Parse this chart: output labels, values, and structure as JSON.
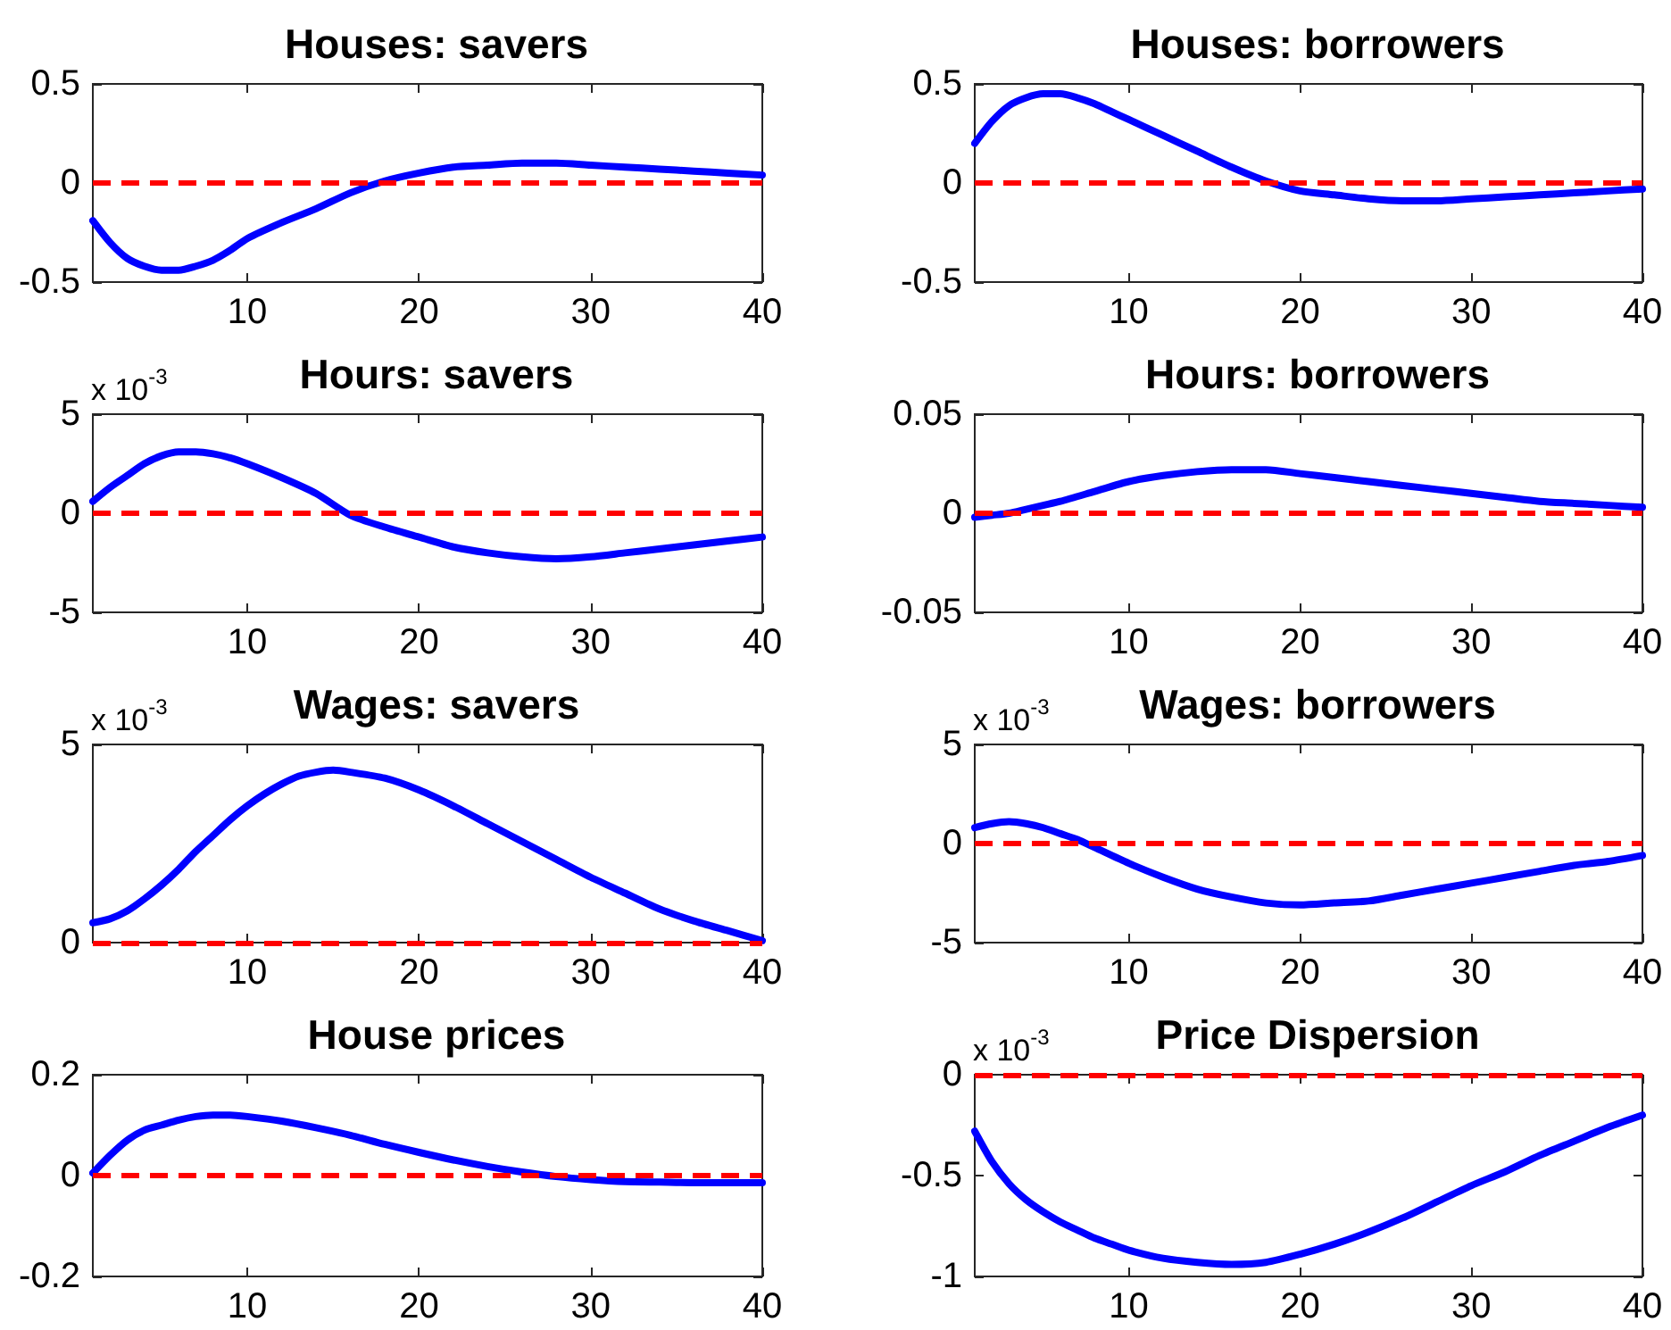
{
  "chart_data": [
    {
      "type": "line",
      "title": "Houses: savers",
      "x": [
        1,
        2,
        3,
        4,
        5,
        6,
        7,
        8,
        9,
        10,
        12,
        14,
        16,
        18,
        20,
        22,
        24,
        26,
        28,
        30,
        32,
        34,
        36,
        38,
        40
      ],
      "series": [
        {
          "color": "#0000ff",
          "values": [
            -0.19,
            -0.3,
            -0.38,
            -0.42,
            -0.44,
            -0.44,
            -0.42,
            -0.39,
            -0.34,
            -0.28,
            -0.2,
            -0.13,
            -0.05,
            0.01,
            0.05,
            0.08,
            0.09,
            0.1,
            0.1,
            0.09,
            0.08,
            0.07,
            0.06,
            0.05,
            0.04
          ]
        }
      ],
      "xlim": [
        1,
        40
      ],
      "xticks": [
        10,
        20,
        30,
        40
      ],
      "ylim": [
        -0.5,
        0.5
      ],
      "yticks": [
        -0.5,
        0,
        0.5
      ],
      "ref_lines": [
        {
          "axis": "y",
          "value": 0,
          "color": "#ff0000",
          "line_style": "dashed"
        }
      ],
      "marker": "none"
    },
    {
      "type": "line",
      "title": "Houses: borrowers",
      "x": [
        1,
        2,
        3,
        4,
        5,
        6,
        7,
        8,
        9,
        10,
        12,
        14,
        16,
        18,
        20,
        22,
        24,
        26,
        28,
        30,
        32,
        34,
        36,
        38,
        40
      ],
      "series": [
        {
          "color": "#0000ff",
          "values": [
            0.2,
            0.31,
            0.39,
            0.43,
            0.45,
            0.45,
            0.43,
            0.4,
            0.36,
            0.32,
            0.24,
            0.16,
            0.08,
            0.01,
            -0.04,
            -0.06,
            -0.08,
            -0.09,
            -0.09,
            -0.08,
            -0.07,
            -0.06,
            -0.05,
            -0.04,
            -0.03
          ]
        }
      ],
      "xlim": [
        1,
        40
      ],
      "xticks": [
        10,
        20,
        30,
        40
      ],
      "ylim": [
        -0.5,
        0.5
      ],
      "yticks": [
        -0.5,
        0,
        0.5
      ],
      "ref_lines": [
        {
          "axis": "y",
          "value": 0,
          "color": "#ff0000",
          "line_style": "dashed"
        }
      ],
      "marker": "none"
    },
    {
      "type": "line",
      "title": "Hours: savers",
      "x": [
        1,
        2,
        3,
        4,
        5,
        6,
        7,
        8,
        9,
        10,
        12,
        14,
        16,
        18,
        20,
        22,
        24,
        26,
        28,
        30,
        32,
        34,
        36,
        38,
        40
      ],
      "series": [
        {
          "color": "#0000ff",
          "values": [
            0.6,
            1.3,
            1.9,
            2.5,
            2.9,
            3.1,
            3.1,
            3.0,
            2.8,
            2.5,
            1.8,
            1.0,
            -0.1,
            -0.7,
            -1.2,
            -1.7,
            -2.0,
            -2.2,
            -2.3,
            -2.2,
            -2.0,
            -1.8,
            -1.6,
            -1.4,
            -1.2
          ]
        }
      ],
      "xlim": [
        1,
        40
      ],
      "xticks": [
        10,
        20,
        30,
        40
      ],
      "ylim": [
        -5,
        5
      ],
      "yticks": [
        -5,
        0,
        5
      ],
      "ref_lines": [
        {
          "axis": "y",
          "value": 0,
          "color": "#ff0000",
          "line_style": "dashed"
        }
      ],
      "marker": "none",
      "annotations": [
        "x 10$^{-3}$"
      ]
    },
    {
      "type": "line",
      "title": "Hours: borrowers",
      "x": [
        1,
        2,
        3,
        4,
        5,
        6,
        8,
        10,
        12,
        14,
        16,
        18,
        20,
        22,
        24,
        26,
        28,
        30,
        32,
        34,
        36,
        38,
        40
      ],
      "series": [
        {
          "color": "#0000ff",
          "values": [
            -0.002,
            -0.001,
            0,
            0.002,
            0.004,
            0.006,
            0.011,
            0.016,
            0.019,
            0.021,
            0.022,
            0.022,
            0.02,
            0.018,
            0.016,
            0.014,
            0.012,
            0.01,
            0.008,
            0.006,
            0.005,
            0.004,
            0.003
          ]
        }
      ],
      "xlim": [
        1,
        40
      ],
      "xticks": [
        10,
        20,
        30,
        40
      ],
      "ylim": [
        -0.05,
        0.05
      ],
      "yticks": [
        -0.05,
        0,
        0.05
      ],
      "ref_lines": [
        {
          "axis": "y",
          "value": 0,
          "color": "#ff0000",
          "line_style": "dashed"
        }
      ],
      "marker": "none"
    },
    {
      "type": "line",
      "title": "Wages: savers",
      "x": [
        1,
        2,
        3,
        4,
        5,
        6,
        7,
        8,
        9,
        10,
        11,
        12,
        13,
        14,
        15,
        16,
        18,
        20,
        22,
        24,
        26,
        28,
        30,
        32,
        34,
        36,
        38,
        40
      ],
      "series": [
        {
          "color": "#0000ff",
          "values": [
            0.5,
            0.6,
            0.8,
            1.1,
            1.45,
            1.85,
            2.3,
            2.7,
            3.1,
            3.45,
            3.75,
            4.0,
            4.2,
            4.3,
            4.35,
            4.3,
            4.15,
            3.85,
            3.45,
            3.0,
            2.55,
            2.1,
            1.65,
            1.25,
            0.85,
            0.55,
            0.3,
            0.05
          ]
        }
      ],
      "xlim": [
        1,
        40
      ],
      "xticks": [
        10,
        20,
        30,
        40
      ],
      "ylim": [
        0,
        5
      ],
      "yticks": [
        0,
        5
      ],
      "ref_lines": [
        {
          "axis": "y",
          "value": 0,
          "color": "#ff0000",
          "line_style": "dashed"
        }
      ],
      "marker": "none",
      "annotations": [
        "x 10$^{-3}$"
      ]
    },
    {
      "type": "line",
      "title": "Wages: borrowers",
      "x": [
        1,
        2,
        3,
        4,
        5,
        6,
        7,
        8,
        10,
        12,
        14,
        16,
        18,
        20,
        22,
        24,
        26,
        28,
        30,
        32,
        34,
        36,
        38,
        40
      ],
      "series": [
        {
          "color": "#0000ff",
          "values": [
            0.8,
            1.0,
            1.1,
            1.0,
            0.8,
            0.5,
            0.2,
            -0.2,
            -1.0,
            -1.7,
            -2.3,
            -2.7,
            -3.0,
            -3.1,
            -3.0,
            -2.9,
            -2.6,
            -2.3,
            -2.0,
            -1.7,
            -1.4,
            -1.1,
            -0.9,
            -0.6
          ]
        }
      ],
      "xlim": [
        1,
        40
      ],
      "xticks": [
        10,
        20,
        30,
        40
      ],
      "ylim": [
        -5,
        5
      ],
      "yticks": [
        -5,
        0,
        5
      ],
      "ref_lines": [
        {
          "axis": "y",
          "value": 0,
          "color": "#ff0000",
          "line_style": "dashed"
        }
      ],
      "marker": "none",
      "annotations": [
        "x 10$^{-3}$"
      ]
    },
    {
      "type": "line",
      "title": "House prices",
      "x": [
        1,
        2,
        3,
        4,
        5,
        6,
        7,
        8,
        9,
        10,
        12,
        14,
        16,
        18,
        20,
        22,
        24,
        26,
        28,
        30,
        32,
        34,
        36,
        38,
        40
      ],
      "series": [
        {
          "color": "#0000ff",
          "values": [
            0.005,
            0.04,
            0.07,
            0.09,
            0.1,
            0.11,
            0.117,
            0.12,
            0.12,
            0.117,
            0.108,
            0.095,
            0.08,
            0.062,
            0.046,
            0.031,
            0.018,
            0.007,
            -0.002,
            -0.008,
            -0.012,
            -0.013,
            -0.014,
            -0.014,
            -0.014
          ]
        }
      ],
      "xlim": [
        1,
        40
      ],
      "xticks": [
        10,
        20,
        30,
        40
      ],
      "ylim": [
        -0.2,
        0.2
      ],
      "yticks": [
        -0.2,
        0,
        0.2
      ],
      "ref_lines": [
        {
          "axis": "y",
          "value": 0,
          "color": "#ff0000",
          "line_style": "dashed"
        }
      ],
      "marker": "none"
    },
    {
      "type": "line",
      "title": "Price Dispersion",
      "x": [
        1,
        2,
        3,
        4,
        5,
        6,
        7,
        8,
        9,
        10,
        12,
        14,
        16,
        18,
        20,
        22,
        24,
        26,
        28,
        30,
        32,
        34,
        36,
        38,
        40
      ],
      "series": [
        {
          "color": "#0000ff",
          "values": [
            -0.28,
            -0.43,
            -0.54,
            -0.62,
            -0.68,
            -0.73,
            -0.77,
            -0.81,
            -0.84,
            -0.87,
            -0.91,
            -0.93,
            -0.94,
            -0.93,
            -0.89,
            -0.84,
            -0.78,
            -0.71,
            -0.63,
            -0.55,
            -0.48,
            -0.4,
            -0.33,
            -0.26,
            -0.2
          ]
        }
      ],
      "xlim": [
        1,
        40
      ],
      "xticks": [
        10,
        20,
        30,
        40
      ],
      "ylim": [
        -1,
        0
      ],
      "yticks": [
        -1,
        -0.5,
        0
      ],
      "ref_lines": [
        {
          "axis": "y",
          "value": 0,
          "color": "#ff0000",
          "line_style": "dashed"
        }
      ],
      "marker": "none",
      "annotations": [
        "x 10$^{-3}$"
      ]
    }
  ]
}
